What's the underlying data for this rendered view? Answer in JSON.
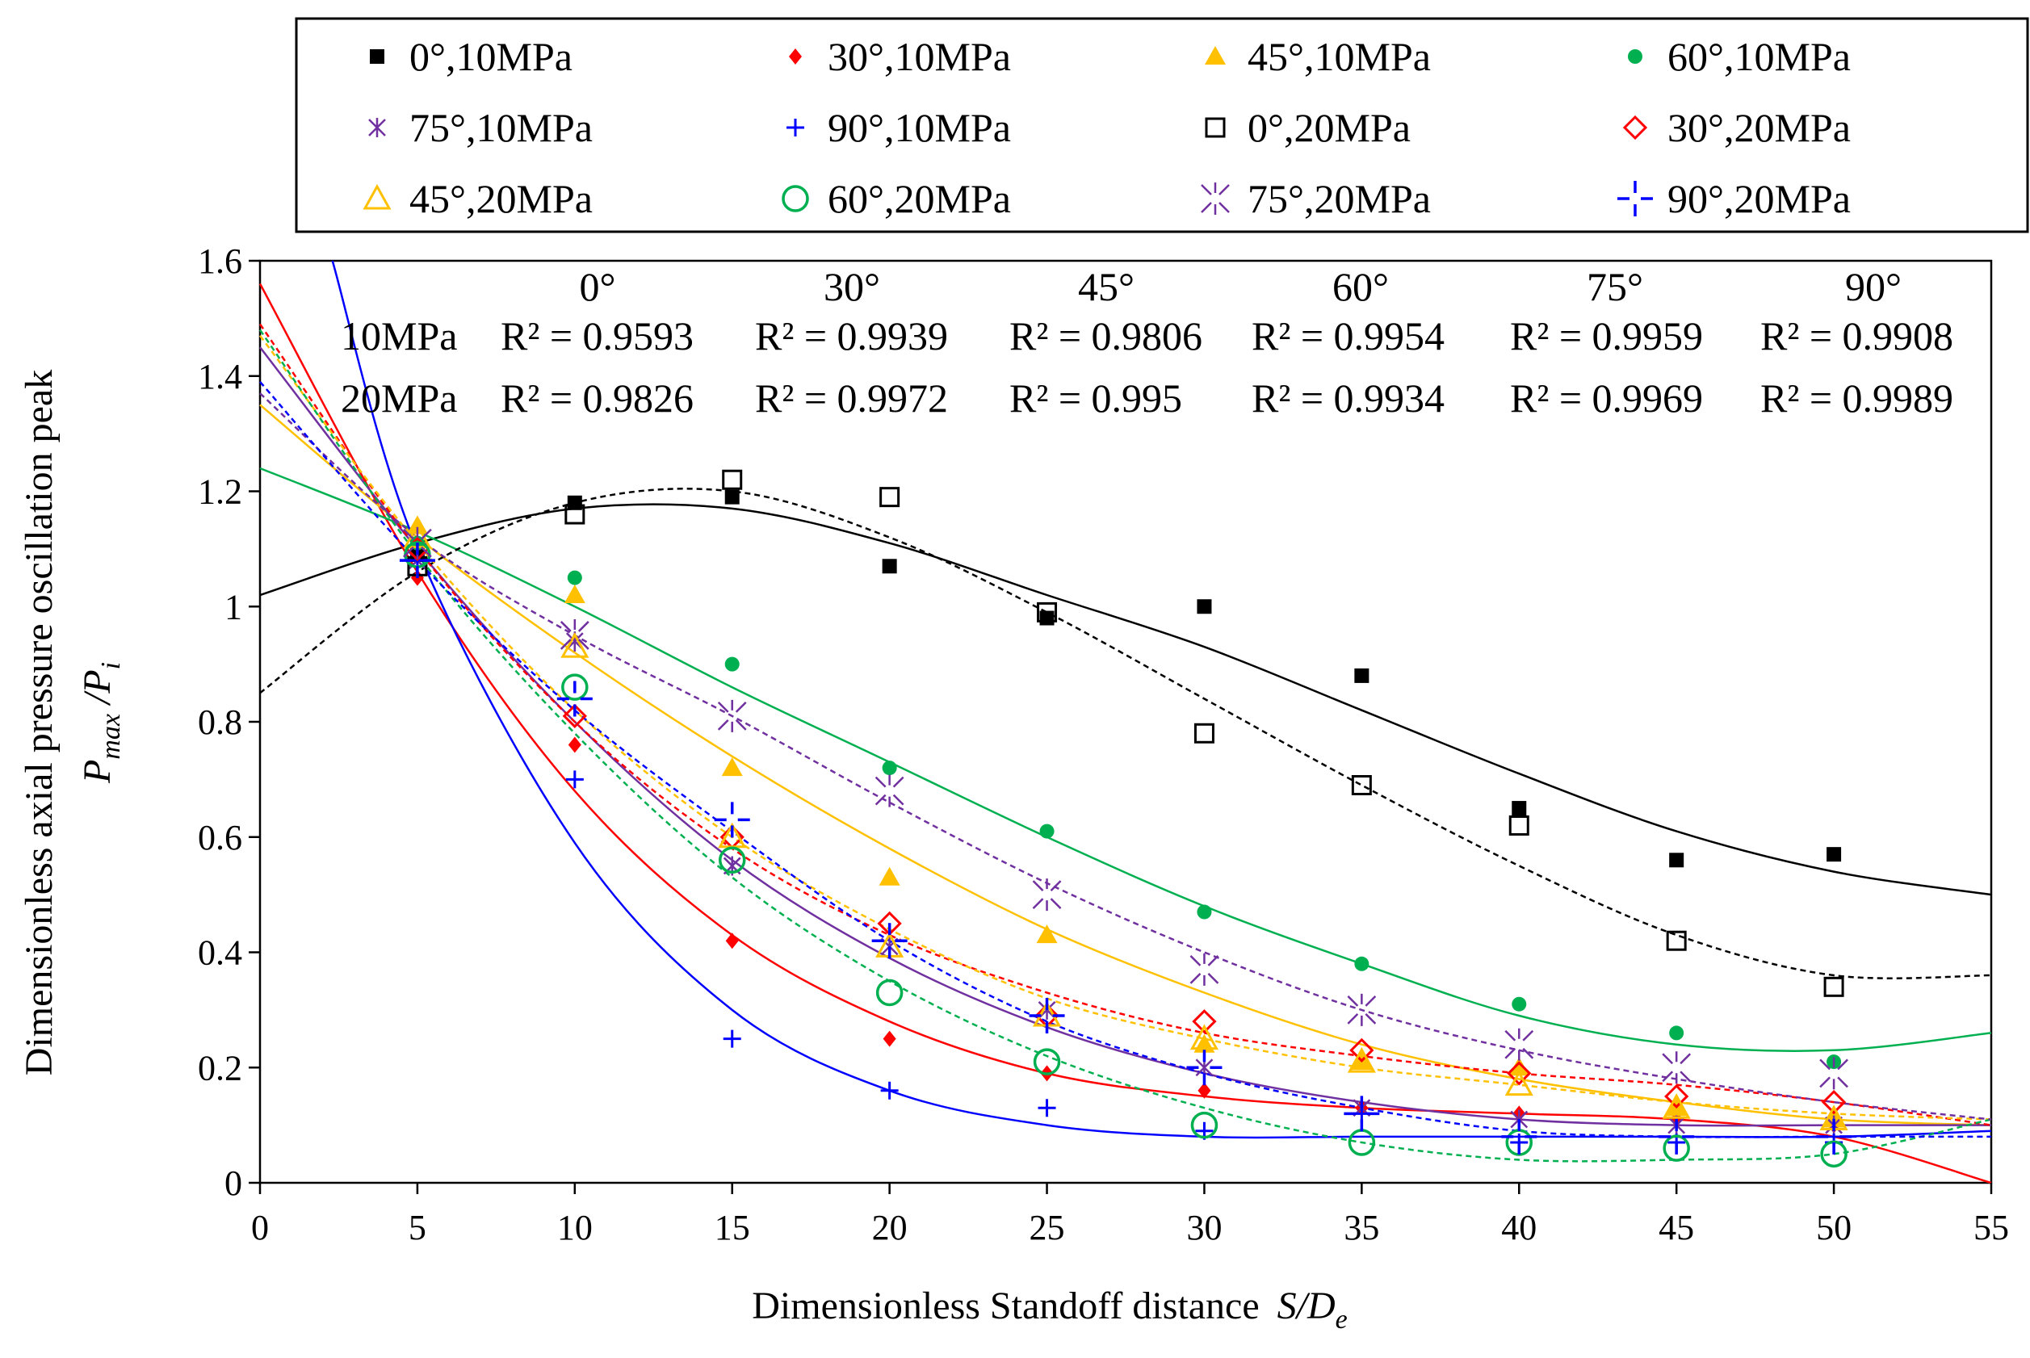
{
  "chart_data": {
    "type": "scatter",
    "title": "",
    "xlabel": "Dimensionless Standoff distance",
    "xlabel_symbol": "S/D",
    "xlabel_symbol_sub": "e",
    "ylabel": "Dimensionless axial pressure oscillation peak",
    "ylabel_symbol_P": "P",
    "ylabel_symbol_sub1": "max",
    "ylabel_symbol_mid": " /P",
    "ylabel_symbol_sub2": "i",
    "xlim": [
      0,
      55
    ],
    "ylim": [
      0,
      1.6
    ],
    "x_ticks": [
      0,
      5,
      10,
      15,
      20,
      25,
      30,
      35,
      40,
      45,
      50,
      55
    ],
    "x_tick_labels": [
      "0",
      "5",
      "10",
      "15",
      "20",
      "25",
      "30",
      "35",
      "40",
      "45",
      "50",
      "55"
    ],
    "y_ticks": [
      0,
      0.2,
      0.4,
      0.6,
      0.8,
      1,
      1.2,
      1.4,
      1.6
    ],
    "y_tick_labels": [
      "0",
      "0.2",
      "0.4",
      "0.6",
      "0.8",
      "1",
      "1.2",
      "1.4",
      "1.6"
    ],
    "grid": false,
    "legend_position": "top, above plot",
    "r2_table": {
      "angles": [
        "0°",
        "30°",
        "45°",
        "60°",
        "75°",
        "90°"
      ],
      "rows": [
        {
          "label": "10MPa",
          "values": [
            "R² = 0.9593",
            "R² = 0.9939",
            "R² = 0.9806",
            "R² = 0.9954",
            "R² = 0.9959",
            "R² = 0.9908"
          ]
        },
        {
          "label": "20MPa",
          "values": [
            "R² = 0.9826",
            "R² = 0.9972",
            "R² = 0.995",
            "R² = 0.9934",
            "R² = 0.9969",
            "R² = 0.9989"
          ]
        }
      ]
    },
    "x": [
      5,
      10,
      15,
      20,
      25,
      30,
      35,
      40,
      45,
      50
    ],
    "series": [
      {
        "name": "0°,10MPa",
        "color": "#000000",
        "marker": "square-filled",
        "dashed": false,
        "values": [
          1.09,
          1.18,
          1.19,
          1.07,
          0.98,
          1.0,
          0.88,
          0.65,
          0.56,
          0.57
        ],
        "trend": [
          [
            0,
            1.02
          ],
          [
            5,
            1.11
          ],
          [
            10,
            1.17
          ],
          [
            15,
            1.17
          ],
          [
            20,
            1.11
          ],
          [
            25,
            1.02
          ],
          [
            30,
            0.93
          ],
          [
            35,
            0.82
          ],
          [
            40,
            0.71
          ],
          [
            45,
            0.61
          ],
          [
            50,
            0.54
          ],
          [
            55,
            0.5
          ]
        ]
      },
      {
        "name": "30°,10MPa",
        "color": "#ff0000",
        "marker": "diamond-filled",
        "dashed": false,
        "values": [
          1.05,
          0.76,
          0.42,
          0.25,
          0.19,
          0.16,
          0.13,
          0.12,
          0.11,
          0.1
        ],
        "trend": [
          [
            0,
            1.56
          ],
          [
            5,
            1.06
          ],
          [
            10,
            0.68
          ],
          [
            15,
            0.43
          ],
          [
            20,
            0.28
          ],
          [
            25,
            0.19
          ],
          [
            30,
            0.15
          ],
          [
            35,
            0.13
          ],
          [
            40,
            0.12
          ],
          [
            45,
            0.11
          ],
          [
            50,
            0.08
          ],
          [
            55,
            0.0
          ]
        ]
      },
      {
        "name": "45°,10MPa",
        "color": "#ffc000",
        "marker": "triangle-filled",
        "dashed": false,
        "values": [
          1.14,
          1.02,
          0.72,
          0.53,
          0.43,
          0.24,
          0.21,
          0.2,
          0.13,
          0.11
        ],
        "trend": [
          [
            0,
            1.35
          ],
          [
            5,
            1.12
          ],
          [
            10,
            0.92
          ],
          [
            15,
            0.74
          ],
          [
            20,
            0.58
          ],
          [
            25,
            0.44
          ],
          [
            30,
            0.33
          ],
          [
            35,
            0.24
          ],
          [
            40,
            0.18
          ],
          [
            45,
            0.14
          ],
          [
            50,
            0.11
          ],
          [
            55,
            0.1
          ]
        ]
      },
      {
        "name": "60°,10MPa",
        "color": "#00b050",
        "marker": "circle-filled",
        "dashed": false,
        "values": [
          1.11,
          1.05,
          0.9,
          0.72,
          0.61,
          0.47,
          0.38,
          0.31,
          0.26,
          0.21
        ],
        "trend": [
          [
            0,
            1.24
          ],
          [
            5,
            1.13
          ],
          [
            10,
            1.0
          ],
          [
            15,
            0.86
          ],
          [
            20,
            0.73
          ],
          [
            25,
            0.6
          ],
          [
            30,
            0.48
          ],
          [
            35,
            0.38
          ],
          [
            40,
            0.29
          ],
          [
            45,
            0.24
          ],
          [
            50,
            0.23
          ],
          [
            55,
            0.26
          ]
        ]
      },
      {
        "name": "75°,10MPa",
        "color": "#7030a0",
        "marker": "asterisk",
        "dashed": false,
        "values": [
          1.08,
          0.94,
          0.55,
          0.41,
          0.3,
          0.2,
          0.13,
          0.11,
          0.1,
          0.1
        ],
        "trend": [
          [
            0,
            1.45
          ],
          [
            5,
            1.1
          ],
          [
            10,
            0.8
          ],
          [
            15,
            0.56
          ],
          [
            20,
            0.39
          ],
          [
            25,
            0.27
          ],
          [
            30,
            0.19
          ],
          [
            35,
            0.14
          ],
          [
            40,
            0.11
          ],
          [
            45,
            0.1
          ],
          [
            50,
            0.1
          ],
          [
            55,
            0.1
          ]
        ]
      },
      {
        "name": "90°,10MPa",
        "color": "#0000ff",
        "marker": "plus",
        "dashed": false,
        "values": [
          1.08,
          0.7,
          0.25,
          0.16,
          0.13,
          0.09,
          0.12,
          0.07,
          0.07,
          0.07
        ],
        "trend": [
          [
            2.3,
            1.6
          ],
          [
            5,
            1.1
          ],
          [
            10,
            0.59
          ],
          [
            15,
            0.3
          ],
          [
            20,
            0.16
          ],
          [
            25,
            0.1
          ],
          [
            30,
            0.08
          ],
          [
            35,
            0.08
          ],
          [
            40,
            0.08
          ],
          [
            45,
            0.08
          ],
          [
            50,
            0.08
          ],
          [
            55,
            0.09
          ]
        ]
      },
      {
        "name": "0°,20MPa",
        "color": "#000000",
        "marker": "square-open",
        "dashed": true,
        "values": [
          1.07,
          1.16,
          1.22,
          1.19,
          0.99,
          0.78,
          0.69,
          0.62,
          0.42,
          0.34
        ],
        "trend": [
          [
            0,
            0.85
          ],
          [
            5,
            1.06
          ],
          [
            10,
            1.18
          ],
          [
            15,
            1.2
          ],
          [
            20,
            1.12
          ],
          [
            25,
            0.99
          ],
          [
            30,
            0.84
          ],
          [
            35,
            0.69
          ],
          [
            40,
            0.55
          ],
          [
            45,
            0.43
          ],
          [
            50,
            0.36
          ],
          [
            55,
            0.36
          ]
        ]
      },
      {
        "name": "30°,20MPa",
        "color": "#ff0000",
        "marker": "diamond-open",
        "dashed": true,
        "values": [
          1.1,
          0.81,
          0.6,
          0.45,
          0.29,
          0.28,
          0.23,
          0.19,
          0.15,
          0.14
        ],
        "trend": [
          [
            0,
            1.49
          ],
          [
            5,
            1.1
          ],
          [
            10,
            0.8
          ],
          [
            15,
            0.58
          ],
          [
            20,
            0.43
          ],
          [
            25,
            0.33
          ],
          [
            30,
            0.26
          ],
          [
            35,
            0.22
          ],
          [
            40,
            0.19
          ],
          [
            45,
            0.17
          ],
          [
            50,
            0.14
          ],
          [
            55,
            0.1
          ]
        ]
      },
      {
        "name": "45°,20MPa",
        "color": "#ffc000",
        "marker": "triangle-open",
        "dashed": true,
        "values": [
          1.12,
          0.93,
          0.6,
          0.41,
          0.29,
          0.25,
          0.21,
          0.17,
          0.13,
          0.11
        ],
        "trend": [
          [
            0,
            1.47
          ],
          [
            5,
            1.11
          ],
          [
            10,
            0.82
          ],
          [
            15,
            0.6
          ],
          [
            20,
            0.44
          ],
          [
            25,
            0.32
          ],
          [
            30,
            0.25
          ],
          [
            35,
            0.2
          ],
          [
            40,
            0.17
          ],
          [
            45,
            0.14
          ],
          [
            50,
            0.12
          ],
          [
            55,
            0.11
          ]
        ]
      },
      {
        "name": "60°,20MPa",
        "color": "#00b050",
        "marker": "circle-open",
        "dashed": true,
        "values": [
          1.09,
          0.86,
          0.56,
          0.33,
          0.21,
          0.1,
          0.07,
          0.07,
          0.06,
          0.05
        ],
        "trend": [
          [
            0,
            1.48
          ],
          [
            5,
            1.09
          ],
          [
            10,
            0.78
          ],
          [
            15,
            0.53
          ],
          [
            20,
            0.35
          ],
          [
            25,
            0.22
          ],
          [
            30,
            0.13
          ],
          [
            35,
            0.07
          ],
          [
            40,
            0.04
          ],
          [
            45,
            0.04
          ],
          [
            50,
            0.05
          ],
          [
            55,
            0.11
          ]
        ]
      },
      {
        "name": "75°,20MPa",
        "color": "#7030a0",
        "marker": "asterisk-open",
        "dashed": true,
        "values": [
          1.11,
          0.95,
          0.81,
          0.68,
          0.5,
          0.37,
          0.3,
          0.24,
          0.2,
          0.19
        ],
        "trend": [
          [
            0,
            1.37
          ],
          [
            5,
            1.12
          ],
          [
            10,
            0.95
          ],
          [
            15,
            0.81
          ],
          [
            20,
            0.66
          ],
          [
            25,
            0.52
          ],
          [
            30,
            0.4
          ],
          [
            35,
            0.3
          ],
          [
            40,
            0.23
          ],
          [
            45,
            0.18
          ],
          [
            50,
            0.14
          ],
          [
            55,
            0.11
          ]
        ]
      },
      {
        "name": "90°,20MPa",
        "color": "#0000ff",
        "marker": "plus-open",
        "dashed": true,
        "values": [
          1.08,
          0.84,
          0.63,
          0.42,
          0.29,
          0.2,
          0.12,
          0.08,
          0.08,
          0.08
        ],
        "trend": [
          [
            0,
            1.39
          ],
          [
            5,
            1.08
          ],
          [
            10,
            0.82
          ],
          [
            15,
            0.61
          ],
          [
            20,
            0.42
          ],
          [
            25,
            0.28
          ],
          [
            30,
            0.19
          ],
          [
            35,
            0.13
          ],
          [
            40,
            0.09
          ],
          [
            45,
            0.08
          ],
          [
            50,
            0.08
          ],
          [
            55,
            0.08
          ]
        ]
      }
    ]
  }
}
